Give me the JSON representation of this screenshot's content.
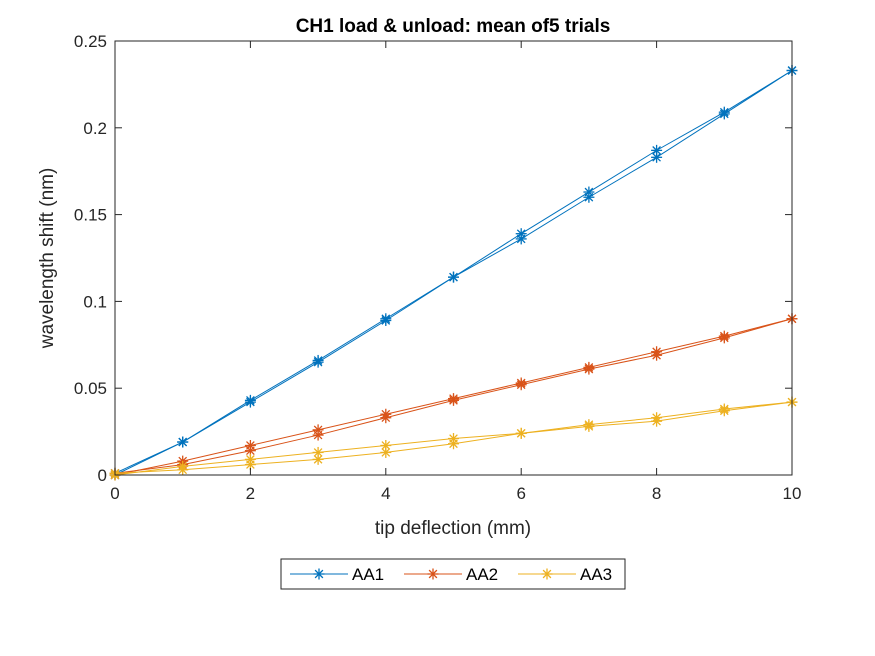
{
  "chart_data": {
    "type": "line",
    "title": "CH1 load & unload: mean of5 trials",
    "xlabel": "tip deflection (mm)",
    "ylabel": "wavelength shift (nm)",
    "xlim": [
      0,
      10
    ],
    "ylim": [
      0,
      0.25
    ],
    "xticks": [
      0,
      2,
      4,
      6,
      8,
      10
    ],
    "xtick_labels": [
      "0",
      "2",
      "4",
      "6",
      "8",
      "10"
    ],
    "yticks": [
      0,
      0.05,
      0.1,
      0.15,
      0.2,
      0.25
    ],
    "ytick_labels": [
      "0",
      "0.05",
      "0.1",
      "0.15",
      "0.2",
      "0.25"
    ],
    "grid": false,
    "legend_placement": "bottom-center, horizontal, outside plot",
    "marker": "asterisk",
    "x": [
      0,
      1,
      2,
      3,
      4,
      5,
      6,
      7,
      8,
      9,
      10
    ],
    "series": [
      {
        "name": "AA1",
        "color": "#0072BD",
        "load": [
          0,
          0.019,
          0.043,
          0.066,
          0.09,
          0.114,
          0.139,
          0.163,
          0.187,
          0.209,
          0.233
        ],
        "unload": [
          0.001,
          0.019,
          0.042,
          0.065,
          0.089,
          0.114,
          0.136,
          0.16,
          0.183,
          0.208,
          0.233
        ]
      },
      {
        "name": "AA2",
        "color": "#D95319",
        "load": [
          0,
          0.008,
          0.017,
          0.026,
          0.035,
          0.044,
          0.053,
          0.062,
          0.071,
          0.08,
          0.09
        ],
        "unload": [
          0.001,
          0.006,
          0.014,
          0.023,
          0.033,
          0.043,
          0.052,
          0.061,
          0.069,
          0.079,
          0.09
        ]
      },
      {
        "name": "AA3",
        "color": "#EDB120",
        "load": [
          0,
          0.005,
          0.009,
          0.013,
          0.017,
          0.021,
          0.024,
          0.029,
          0.033,
          0.038,
          0.042
        ],
        "unload": [
          0.001,
          0.003,
          0.006,
          0.009,
          0.013,
          0.018,
          0.024,
          0.028,
          0.031,
          0.037,
          0.042
        ]
      }
    ]
  }
}
